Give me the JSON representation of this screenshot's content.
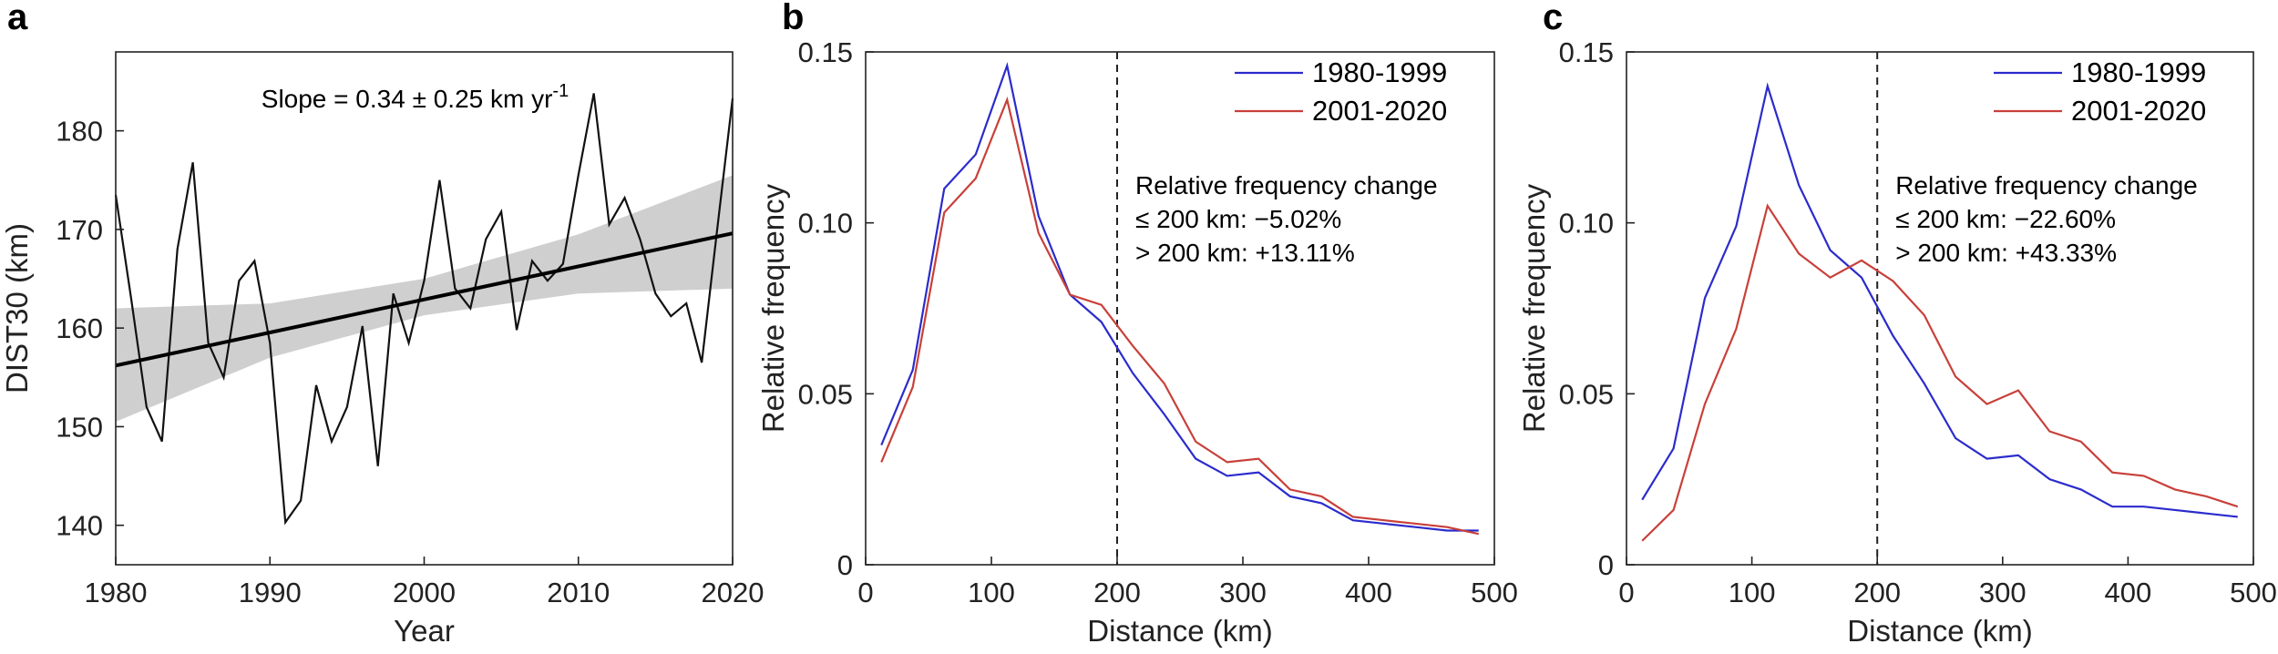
{
  "chart_data": [
    {
      "panel": "a",
      "type": "line",
      "xlabel": "Year",
      "ylabel": "DIST30 (km)",
      "xlim": [
        1980,
        2020
      ],
      "ylim": [
        136,
        188
      ],
      "xticks": [
        1980,
        1990,
        2000,
        2010,
        2020
      ],
      "yticks": [
        140,
        150,
        160,
        170,
        180
      ],
      "annotation": "Slope = 0.34 ± 0.25 km yr",
      "annotation_sup": "-1",
      "series": [
        {
          "x": [
            1980,
            1981,
            1982,
            1983,
            1984,
            1985,
            1986,
            1987,
            1988,
            1989,
            1990,
            1991,
            1992,
            1993,
            1994,
            1995,
            1996,
            1997,
            1998,
            1999,
            2000,
            2001,
            2002,
            2003,
            2004,
            2005,
            2006,
            2007,
            2008,
            2009,
            2010,
            2011,
            2012,
            2013,
            2014,
            2015,
            2016,
            2017,
            2018,
            2019,
            2020
          ],
          "values": [
            173.5,
            163,
            152,
            148.5,
            168,
            176.8,
            158.5,
            155,
            164.8,
            166.8,
            158.5,
            140.3,
            142.5,
            154.2,
            148.5,
            152,
            160.2,
            146,
            163.5,
            158.5,
            164.8,
            175,
            164,
            162,
            169,
            171.8,
            159.8,
            166.8,
            164.8,
            166.5,
            175.5,
            183.8,
            170.5,
            173.2,
            169,
            163.5,
            161.2,
            162.5,
            156.5,
            170,
            183.3
          ]
        }
      ],
      "trend": {
        "x": [
          1980,
          2020
        ],
        "y": [
          156.2,
          169.6
        ]
      },
      "confidence_band": {
        "x": [
          1980,
          1990,
          2000,
          2010,
          2020
        ],
        "lower": [
          150.5,
          157,
          161.3,
          163.5,
          164
        ],
        "upper": [
          162,
          162.5,
          165,
          169.5,
          175.5
        ]
      },
      "colors": {
        "line": "#111111",
        "trend": "#000000",
        "band": "#cfcfcf"
      }
    },
    {
      "panel": "b",
      "type": "line",
      "xlabel": "Distance (km)",
      "ylabel": "Relative frequency",
      "xlim": [
        0,
        500
      ],
      "ylim": [
        0,
        0.15
      ],
      "xticks": [
        0,
        100,
        200,
        300,
        400,
        500
      ],
      "yticks": [
        0,
        0.05,
        0.1,
        0.15
      ],
      "ytick_labels": [
        "0",
        "0.05",
        "0.10",
        "0.15"
      ],
      "vline": 200,
      "annotation_lines": [
        "Relative frequency change",
        "≤ 200 km: −5.02%",
        "> 200 km: +13.11%"
      ],
      "x": [
        12.5,
        37.5,
        62.5,
        87.5,
        112.5,
        137.5,
        162.5,
        187.5,
        212.5,
        237.5,
        262.5,
        287.5,
        312.5,
        337.5,
        362.5,
        387.5,
        412.5,
        437.5,
        462.5,
        487.5
      ],
      "series": [
        {
          "name": "1980-1999",
          "color": "#2b2bcc",
          "values": [
            0.035,
            0.057,
            0.11,
            0.12,
            0.146,
            0.102,
            0.079,
            0.071,
            0.056,
            0.044,
            0.031,
            0.026,
            0.027,
            0.02,
            0.018,
            0.013,
            0.012,
            0.011,
            0.01,
            0.01
          ]
        },
        {
          "name": "2001-2020",
          "color": "#c8403a",
          "values": [
            0.03,
            0.052,
            0.103,
            0.113,
            0.136,
            0.097,
            0.079,
            0.076,
            0.064,
            0.053,
            0.036,
            0.03,
            0.031,
            0.022,
            0.02,
            0.014,
            0.013,
            0.012,
            0.011,
            0.009
          ]
        }
      ],
      "legend_position": "top-right"
    },
    {
      "panel": "c",
      "type": "line",
      "xlabel": "Distance (km)",
      "ylabel": "Relative frequency",
      "xlim": [
        0,
        500
      ],
      "ylim": [
        0,
        0.15
      ],
      "xticks": [
        0,
        100,
        200,
        300,
        400,
        500
      ],
      "yticks": [
        0,
        0.05,
        0.1,
        0.15
      ],
      "ytick_labels": [
        "0",
        "0.05",
        "0.10",
        "0.15"
      ],
      "vline": 200,
      "annotation_lines": [
        "Relative frequency change",
        "≤ 200 km: −22.60%",
        "> 200 km: +43.33%"
      ],
      "x": [
        12.5,
        37.5,
        62.5,
        87.5,
        112.5,
        137.5,
        162.5,
        187.5,
        212.5,
        237.5,
        262.5,
        287.5,
        312.5,
        337.5,
        362.5,
        387.5,
        412.5,
        437.5,
        462.5,
        487.5
      ],
      "series": [
        {
          "name": "1980-1999",
          "color": "#2b2bcc",
          "values": [
            0.019,
            0.034,
            0.078,
            0.099,
            0.14,
            0.111,
            0.092,
            0.084,
            0.067,
            0.053,
            0.037,
            0.031,
            0.032,
            0.025,
            0.022,
            0.017,
            0.017,
            0.016,
            0.015,
            0.014
          ]
        },
        {
          "name": "2001-2020",
          "color": "#c8403a",
          "values": [
            0.007,
            0.016,
            0.047,
            0.069,
            0.105,
            0.091,
            0.084,
            0.089,
            0.083,
            0.073,
            0.055,
            0.047,
            0.051,
            0.039,
            0.036,
            0.027,
            0.026,
            0.022,
            0.02,
            0.017
          ]
        }
      ],
      "legend_position": "top-right"
    }
  ]
}
